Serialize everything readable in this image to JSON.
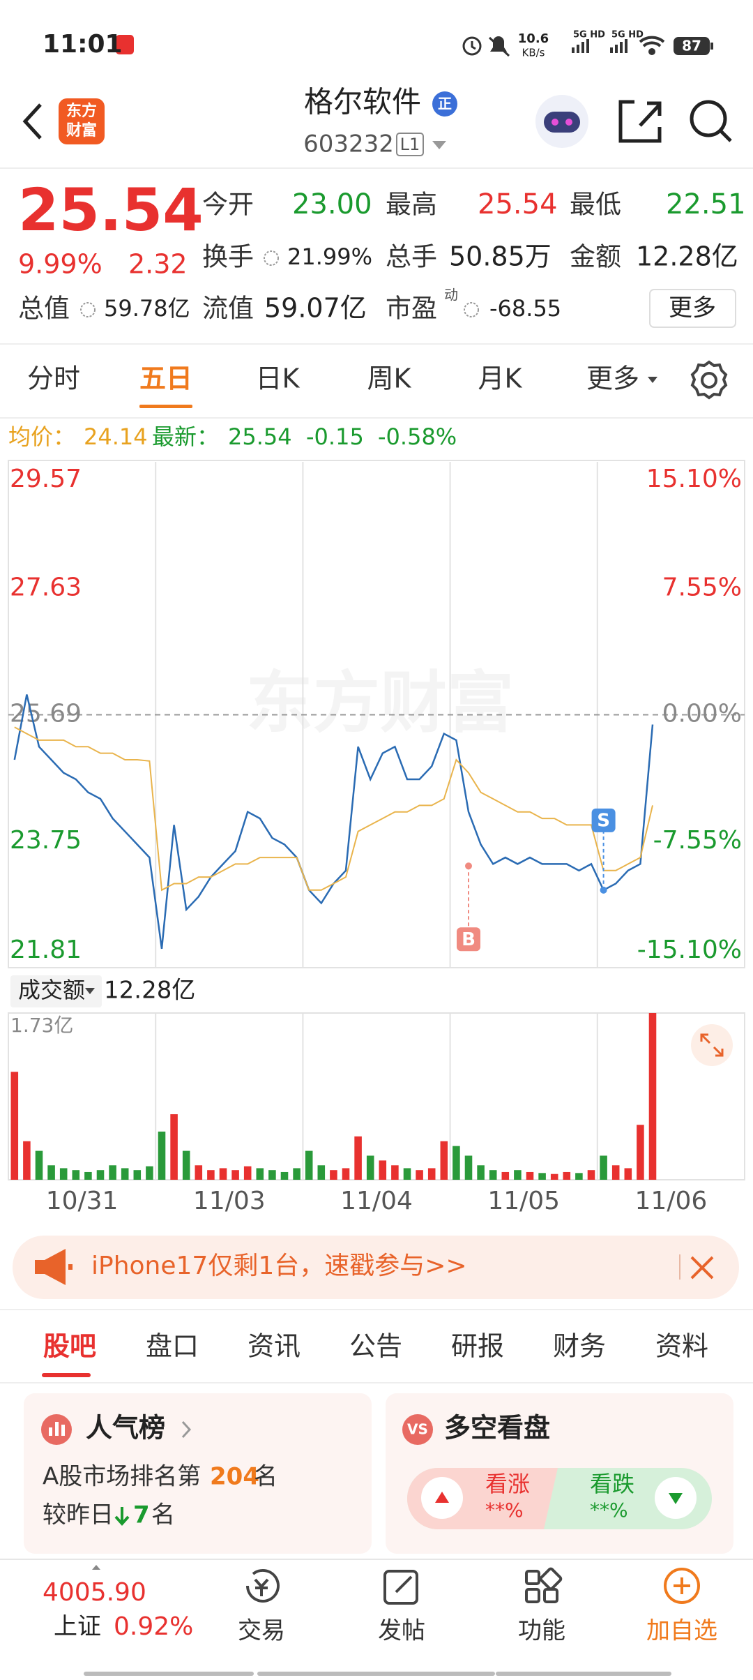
{
  "status_bar": {
    "time": "11:01",
    "speed": "10.6",
    "speed_unit": "KB/s",
    "net1": "5G HD",
    "net2": "5G HD",
    "battery": "87"
  },
  "header": {
    "logo": [
      "东方",
      "财富"
    ],
    "title": "格尔软件",
    "badge": "正",
    "code": "603232",
    "level": "L1"
  },
  "quote": {
    "price": "25.54",
    "change_pct": "9.99%",
    "change": "2.32",
    "fields": [
      {
        "label": "今开",
        "value": "23.00"
      },
      {
        "label": "最高",
        "value": "25.54"
      },
      {
        "label": "最低",
        "value": "22.51"
      },
      {
        "label": "换手",
        "value": "21.99%"
      },
      {
        "label": "总手",
        "value": "50.85万"
      },
      {
        "label": "金额",
        "value": "12.28亿"
      },
      {
        "label": "总值",
        "value": "59.78亿"
      },
      {
        "label": "流值",
        "value": "59.07亿"
      },
      {
        "label": "市盈",
        "sup": "动",
        "value": "-68.55"
      }
    ],
    "more": "更多"
  },
  "period_tabs": [
    "分时",
    "五日",
    "日K",
    "周K",
    "月K",
    "更多"
  ],
  "summary": {
    "avg_label": "均价：",
    "avg": "24.14",
    "latest_label": "最新：",
    "latest": "25.54",
    "change": "-0.15",
    "change_pct": "-0.58%"
  },
  "chart_data": [
    {
      "type": "line",
      "days": [
        "10/31",
        "11/03",
        "11/04",
        "11/05",
        "11/06"
      ],
      "series": [
        {
          "color": "#2a6bb3",
          "values": [
            25.0,
            26.0,
            25.2,
            25.0,
            24.8,
            24.7,
            24.5,
            24.4,
            24.1,
            23.9,
            23.7,
            23.5,
            22.1,
            24.0,
            22.7,
            22.9,
            23.2,
            23.4,
            23.6,
            24.2,
            24.1,
            23.8,
            23.7,
            23.5,
            23.0,
            22.8,
            23.1,
            23.3,
            25.2,
            24.7,
            25.1,
            25.2,
            24.7,
            24.7,
            24.9,
            25.4,
            25.3,
            24.2,
            23.7,
            23.4,
            23.5,
            23.4,
            23.5,
            23.4,
            23.4,
            23.4,
            23.3,
            23.4,
            23.0,
            23.1,
            23.3,
            23.4,
            25.54,
            null,
            null,
            null,
            null,
            null,
            null,
            null
          ]
        },
        {
          "color": "#e9b44c",
          "values": [
            25.5,
            25.4,
            25.3,
            25.3,
            25.3,
            25.2,
            25.2,
            25.1,
            25.1,
            25.0,
            25.0,
            24.98,
            23.0,
            23.1,
            23.1,
            23.2,
            23.2,
            23.3,
            23.4,
            23.4,
            23.5,
            23.5,
            23.5,
            23.5,
            23.0,
            23.0,
            23.1,
            23.2,
            23.9,
            24.0,
            24.1,
            24.2,
            24.2,
            24.3,
            24.3,
            24.4,
            25.0,
            24.8,
            24.5,
            24.4,
            24.3,
            24.2,
            24.2,
            24.1,
            24.1,
            24.0,
            24.0,
            24.0,
            23.3,
            23.3,
            23.4,
            23.5,
            24.3,
            null,
            null,
            null,
            null,
            null,
            null,
            null
          ]
        }
      ],
      "ylim": [
        21.81,
        29.57
      ],
      "yticks": [
        29.57,
        27.63,
        25.69,
        23.75,
        21.81
      ],
      "y2lim": [
        -15.1,
        15.1
      ],
      "y2ticks": [
        {
          "value": 15.1,
          "label": "15.10%"
        },
        {
          "value": 7.55,
          "label": "7.55%"
        },
        {
          "value": 0,
          "label": "0.00%"
        },
        {
          "value": -7.55,
          "label": "-7.55%"
        },
        {
          "value": -15.1,
          "label": "-15.10%"
        }
      ],
      "watermark": "东方财富",
      "markers": [
        {
          "label": "B",
          "point": 37,
          "price": 23.37
        },
        {
          "label": "S",
          "point": 48,
          "price": 23.0
        }
      ]
    },
    {
      "type": "bar",
      "label": "成交额",
      "total": "12.28亿",
      "up_color": "#e8312f",
      "down_color": "#2a9a3a",
      "values": [
        1.12,
        0.4,
        0.3,
        0.15,
        0.12,
        0.1,
        0.08,
        0.1,
        0.15,
        0.12,
        0.1,
        0.14,
        0.5,
        0.68,
        0.3,
        0.15,
        0.1,
        0.12,
        0.1,
        0.14,
        0.12,
        0.1,
        0.08,
        0.12,
        0.3,
        0.15,
        0.1,
        0.12,
        0.45,
        0.25,
        0.2,
        0.15,
        0.12,
        0.1,
        0.12,
        0.4,
        0.35,
        0.25,
        0.15,
        0.1,
        0.08,
        0.1,
        0.08,
        0.07,
        0.06,
        0.08,
        0.07,
        0.1,
        0.25,
        0.15,
        0.12,
        0.57,
        1.73,
        null,
        null,
        null,
        null,
        null,
        null,
        null
      ],
      "ylim": [
        0,
        1.73
      ],
      "yticks": [
        {
          "value": 1.73,
          "label": "1.73亿"
        }
      ]
    }
  ],
  "banner": {
    "text": "iPhone17仅剩1台，速戳参与>>"
  },
  "section_tabs": [
    "股吧",
    "盘口",
    "资讯",
    "公告",
    "研报",
    "财务",
    "资料"
  ],
  "popularity": {
    "title": "人气榜",
    "line1_prefix": "A股市场排名第",
    "rank": "204",
    "line1_suffix": "名",
    "line2_prefix": "较昨日",
    "change": "7",
    "line2_suffix": "名"
  },
  "sentiment": {
    "title": "多空看盘",
    "bull": "看涨",
    "bull_value": "**%",
    "bear": "看跌",
    "bear_value": "**%"
  },
  "bottom_bar": {
    "index_value": "4005.90",
    "index_name": "上证",
    "index_pct": "0.92%",
    "items": [
      "交易",
      "发帖",
      "功能",
      "加自选"
    ]
  }
}
